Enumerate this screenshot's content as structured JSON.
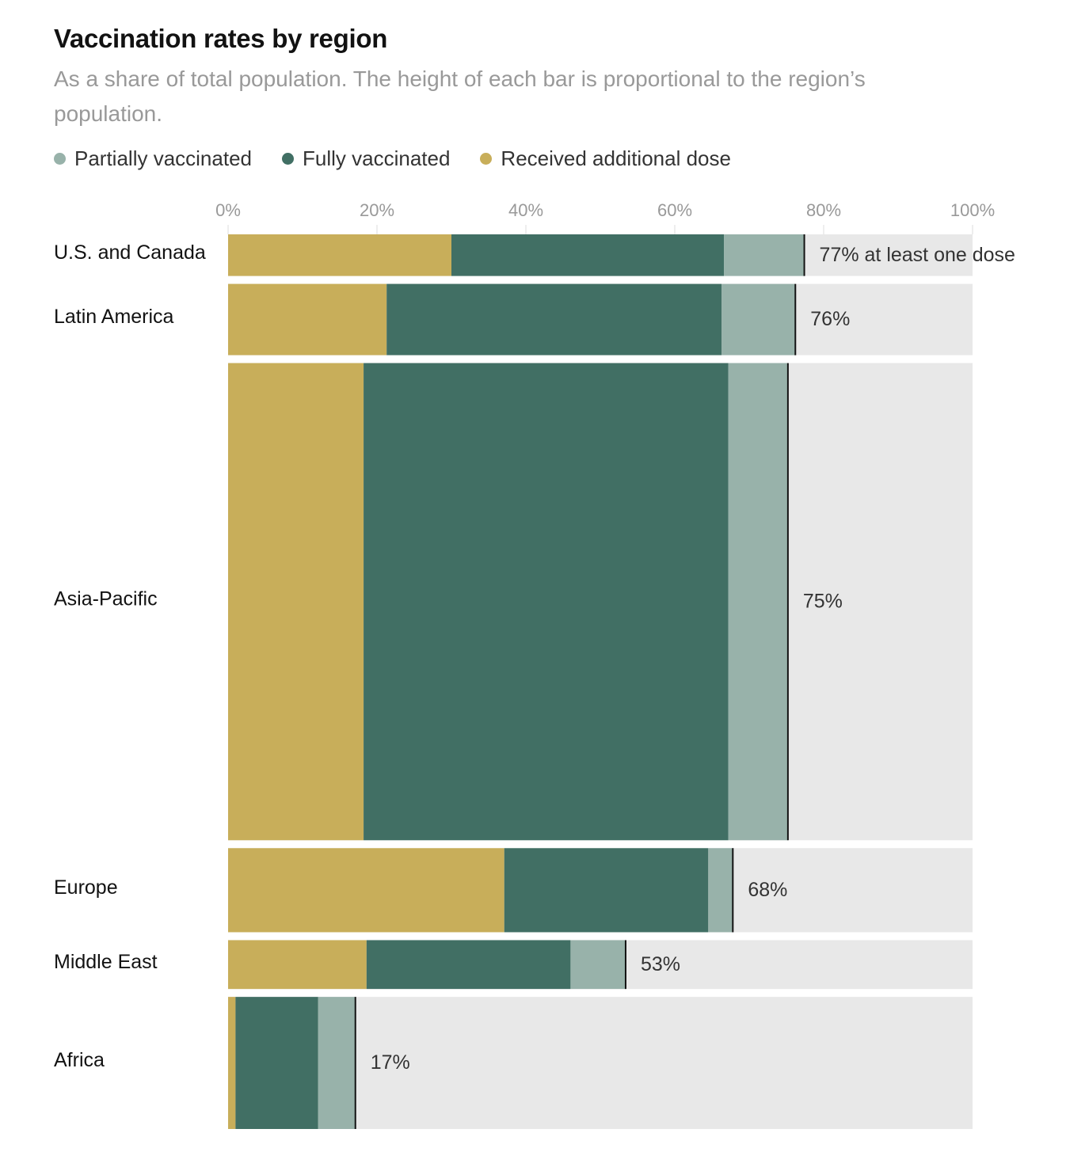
{
  "title": "Vaccination rates by region",
  "subtitle": "As a share of total population. The height of each bar is proportional to the region’s population.",
  "legend": [
    {
      "label": "Partially vaccinated",
      "color": "#98b2aa"
    },
    {
      "label": "Fully vaccinated",
      "color": "#416f64"
    },
    {
      "label": "Received additional dose",
      "color": "#c8ae5a"
    }
  ],
  "colors": {
    "additional": "#c8ae5a",
    "fully": "#416f64",
    "partial": "#98b2aa",
    "remainder": "#e8e8e8",
    "marker": "#121212"
  },
  "chart_data": {
    "type": "bar",
    "orientation": "horizontal",
    "stacked": true,
    "title": "Vaccination rates by region",
    "subtitle": "As a share of total population. The height of each bar is proportional to the region’s population.",
    "xlim": [
      0,
      100
    ],
    "x_ticks": [
      "0%",
      "20%",
      "40%",
      "60%",
      "80%",
      "100%"
    ],
    "x_tick_values": [
      0,
      20,
      40,
      60,
      80,
      100
    ],
    "grid": false,
    "legend_position": "top-left",
    "categories": [
      "U.S. and Canada",
      "Latin America",
      "Asia-Pacific",
      "Europe",
      "Middle East",
      "Africa"
    ],
    "population_weights": [
      52,
      89,
      596,
      105,
      61,
      165
    ],
    "series": [
      {
        "name": "Received additional dose",
        "values": [
          30,
          21.3,
          18.2,
          37.1,
          18.6,
          1
        ]
      },
      {
        "name": "Fully vaccinated",
        "values": [
          36.6,
          45,
          49,
          27.4,
          27.4,
          11.1
        ]
      },
      {
        "name": "Partially vaccinated",
        "values": [
          10.8,
          9.9,
          8,
          3.3,
          7.4,
          5
        ]
      }
    ],
    "at_least_one_dose": [
      77,
      76,
      75,
      68,
      53,
      17
    ],
    "value_labels": [
      "77% at least one dose",
      "76%",
      "75%",
      "68%",
      "53%",
      "17%"
    ]
  }
}
